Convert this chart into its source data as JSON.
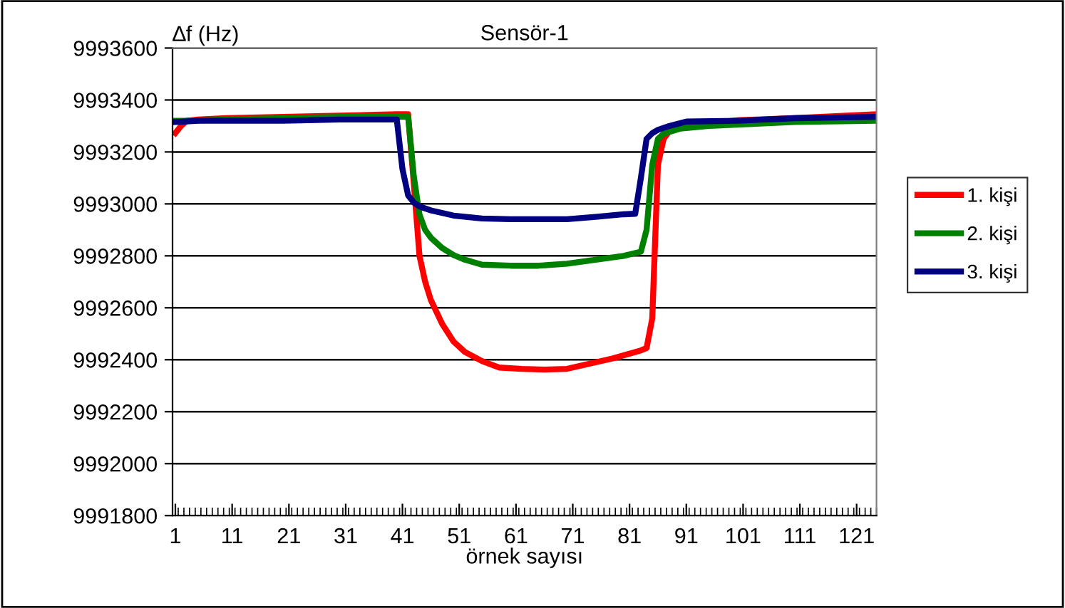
{
  "chart_data": {
    "type": "line",
    "title": "Sensör-1",
    "xlabel": "örnek sayısı",
    "ylabel": "∆f (Hz)",
    "xlim": [
      0.5,
      124.5
    ],
    "xticks": [
      1,
      11,
      21,
      31,
      41,
      51,
      61,
      71,
      81,
      91,
      101,
      111,
      121
    ],
    "ylim": [
      9991800,
      9993600
    ],
    "yticks": [
      9991800,
      9992000,
      9992200,
      9992400,
      9992600,
      9992800,
      9993000,
      9993200,
      9993400,
      9993600
    ],
    "grid": "y",
    "legend": "right",
    "series": [
      {
        "name": "1. kişi",
        "color": "#ff0000",
        "x": [
          1,
          2,
          3,
          5,
          10,
          20,
          30,
          40,
          42,
          43,
          44,
          45,
          46,
          48,
          50,
          52,
          55,
          58,
          62,
          66,
          70,
          74,
          78,
          83,
          84,
          85,
          86,
          87,
          88,
          90,
          100,
          110,
          124
        ],
        "values": [
          9993273,
          9993300,
          9993320,
          9993325,
          9993330,
          9993335,
          9993340,
          9993345,
          9993345,
          9993079,
          9992800,
          9992700,
          9992630,
          9992538,
          9992470,
          9992430,
          9992395,
          9992370,
          9992365,
          9992362,
          9992365,
          9992385,
          9992405,
          9992436,
          9992445,
          9992559,
          9993150,
          9993250,
          9993280,
          9993300,
          9993322,
          9993330,
          9993345
        ]
      },
      {
        "name": "2. kişi",
        "color": "#008000",
        "x": [
          1,
          3,
          10,
          20,
          30,
          42,
          43,
          44,
          45,
          46,
          48,
          50,
          52,
          55,
          60,
          65,
          70,
          75,
          80,
          83,
          84,
          85,
          86,
          87,
          90,
          95,
          100,
          110,
          124
        ],
        "values": [
          9993320,
          9993320,
          9993325,
          9993330,
          9993335,
          9993335,
          9993106,
          9992959,
          9992900,
          9992870,
          9992830,
          9992803,
          9992785,
          9992766,
          9992762,
          9992762,
          9992770,
          9992785,
          9992800,
          9992816,
          9992900,
          9993150,
          9993250,
          9993270,
          9993290,
          9993300,
          9993305,
          9993315,
          9993320
        ]
      },
      {
        "name": "3. kişi",
        "color": "#000080",
        "x": [
          1,
          5,
          10,
          20,
          30,
          40,
          41,
          42,
          43,
          44,
          46,
          50,
          55,
          60,
          70,
          75,
          80,
          82,
          83,
          84,
          85,
          86,
          88,
          91,
          100,
          110,
          124
        ],
        "values": [
          9993315,
          9993320,
          9993320,
          9993320,
          9993325,
          9993325,
          9993134,
          9993033,
          9993005,
          9992990,
          9992975,
          9992955,
          9992944,
          9992941,
          9992941,
          9992950,
          9992960,
          9992962,
          9993100,
          9993250,
          9993272,
          9993285,
          9993300,
          9993317,
          9993320,
          9993330,
          9993335
        ]
      }
    ]
  }
}
